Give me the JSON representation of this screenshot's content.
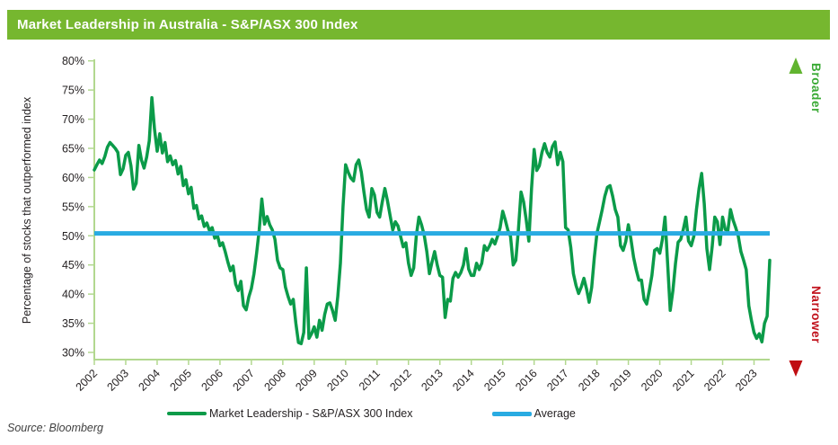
{
  "header": {
    "title": "Market Leadership in Australia - S&P/ASX 300 Index",
    "bg_color": "#76b72f",
    "text_color": "#ffffff"
  },
  "source": {
    "label": "Source: Bloomberg"
  },
  "side_annotation": {
    "top_label": "Broader",
    "top_color": "#3aaa35",
    "bottom_label": "Narrower",
    "bottom_color": "#c1121c",
    "arrow_gradient": [
      "#61b430",
      "#8d9426",
      "#a3601d",
      "#c00d12"
    ]
  },
  "legend": [
    {
      "label": "Market Leadership - S&P/ASX 300 Index",
      "color": "#0b9b49"
    },
    {
      "label": "Average",
      "color": "#29abe2"
    }
  ],
  "chart_data": {
    "type": "line",
    "title": "Market Leadership in Australia - S&P/ASX 300 Index",
    "xlabel": "",
    "ylabel": "Percentage of stocks that outperformed index",
    "ylim": [
      30,
      80
    ],
    "yticks": [
      30,
      35,
      40,
      45,
      50,
      55,
      60,
      65,
      70,
      75,
      80
    ],
    "ytick_suffix": "%",
    "xticks": [
      2002,
      2003,
      2004,
      2005,
      2006,
      2007,
      2008,
      2009,
      2010,
      2011,
      2012,
      2013,
      2014,
      2015,
      2016,
      2017,
      2018,
      2019,
      2020,
      2021,
      2022,
      2023
    ],
    "grid": false,
    "legend_position": "bottom",
    "axis_color": "#b2d88f",
    "tick_label_color": "#231f20",
    "x_start_year": 2002.0,
    "x_end_year": 2023.5,
    "points_per_year": 12,
    "series": [
      {
        "name": "Market Leadership - S&P/ASX 300 Index",
        "color": "#0b9b49",
        "values": [
          61.3,
          62.2,
          63.0,
          62.4,
          63.6,
          65.2,
          66.0,
          65.5,
          65.0,
          64.3,
          60.5,
          61.5,
          63.8,
          64.3,
          62.0,
          58.0,
          59.0,
          65.5,
          63.0,
          61.6,
          63.5,
          66.3,
          73.7,
          68.3,
          64.5,
          67.5,
          64.2,
          66.0,
          62.7,
          63.7,
          62.2,
          62.9,
          60.6,
          61.9,
          58.6,
          59.6,
          57.2,
          58.3,
          54.7,
          55.2,
          52.9,
          53.4,
          51.6,
          52.2,
          50.9,
          51.4,
          49.6,
          50.1,
          48.3,
          48.8,
          47.3,
          45.5,
          44.0,
          44.8,
          41.7,
          40.6,
          42.2,
          38.0,
          37.3,
          39.5,
          41.0,
          43.5,
          47.0,
          51.0,
          56.3,
          52.0,
          53.3,
          51.9,
          51.0,
          49.4,
          45.8,
          44.5,
          44.2,
          41.2,
          39.6,
          38.3,
          39.1,
          35.0,
          31.7,
          31.5,
          33.4,
          44.5,
          32.4,
          33.2,
          34.4,
          32.6,
          35.5,
          33.8,
          36.5,
          38.3,
          38.5,
          37.2,
          35.5,
          39.6,
          45.3,
          55.0,
          62.2,
          60.9,
          59.9,
          59.4,
          62.2,
          63.0,
          60.9,
          57.5,
          54.5,
          53.2,
          58.1,
          57.0,
          54.0,
          53.2,
          55.8,
          58.1,
          56.0,
          53.4,
          51.0,
          52.4,
          51.7,
          49.9,
          48.1,
          48.8,
          45.3,
          43.2,
          44.5,
          50.0,
          53.2,
          51.9,
          50.1,
          47.3,
          43.5,
          45.5,
          47.3,
          45.0,
          43.2,
          42.9,
          36.0,
          39.1,
          38.8,
          42.7,
          43.7,
          42.9,
          43.7,
          45.0,
          47.8,
          44.3,
          43.2,
          43.2,
          45.3,
          44.2,
          45.3,
          48.3,
          47.5,
          48.3,
          49.4,
          48.6,
          49.9,
          51.4,
          54.2,
          52.7,
          50.9,
          49.9,
          45.0,
          45.8,
          51.1,
          57.5,
          55.8,
          52.7,
          49.1,
          58.1,
          64.8,
          61.2,
          62.0,
          64.3,
          65.8,
          64.3,
          63.5,
          65.3,
          66.1,
          62.2,
          64.3,
          62.7,
          51.4,
          51.0,
          48.0,
          43.5,
          41.5,
          40.1,
          41.2,
          42.7,
          40.9,
          38.6,
          41.2,
          46.3,
          50.4,
          52.4,
          54.5,
          56.8,
          58.3,
          58.6,
          56.8,
          54.5,
          53.2,
          48.3,
          47.5,
          49.0,
          51.9,
          49.4,
          46.3,
          44.2,
          42.4,
          42.4,
          39.1,
          38.3,
          40.6,
          43.2,
          47.5,
          47.8,
          47.0,
          49.4,
          53.2,
          45.3,
          37.2,
          40.6,
          45.3,
          48.9,
          49.4,
          51.1,
          53.2,
          49.1,
          48.3,
          49.9,
          54.5,
          58.1,
          60.7,
          55.5,
          47.8,
          44.2,
          48.1,
          53.2,
          52.4,
          48.5,
          53.2,
          51.1,
          50.9,
          54.5,
          52.7,
          51.4,
          49.9,
          47.3,
          45.8,
          44.2,
          38.0,
          35.5,
          33.4,
          32.4,
          33.2,
          31.8,
          35.0,
          36.2,
          45.8
        ]
      },
      {
        "name": "Average",
        "color": "#29abe2",
        "constant_value": 50.4
      }
    ]
  }
}
